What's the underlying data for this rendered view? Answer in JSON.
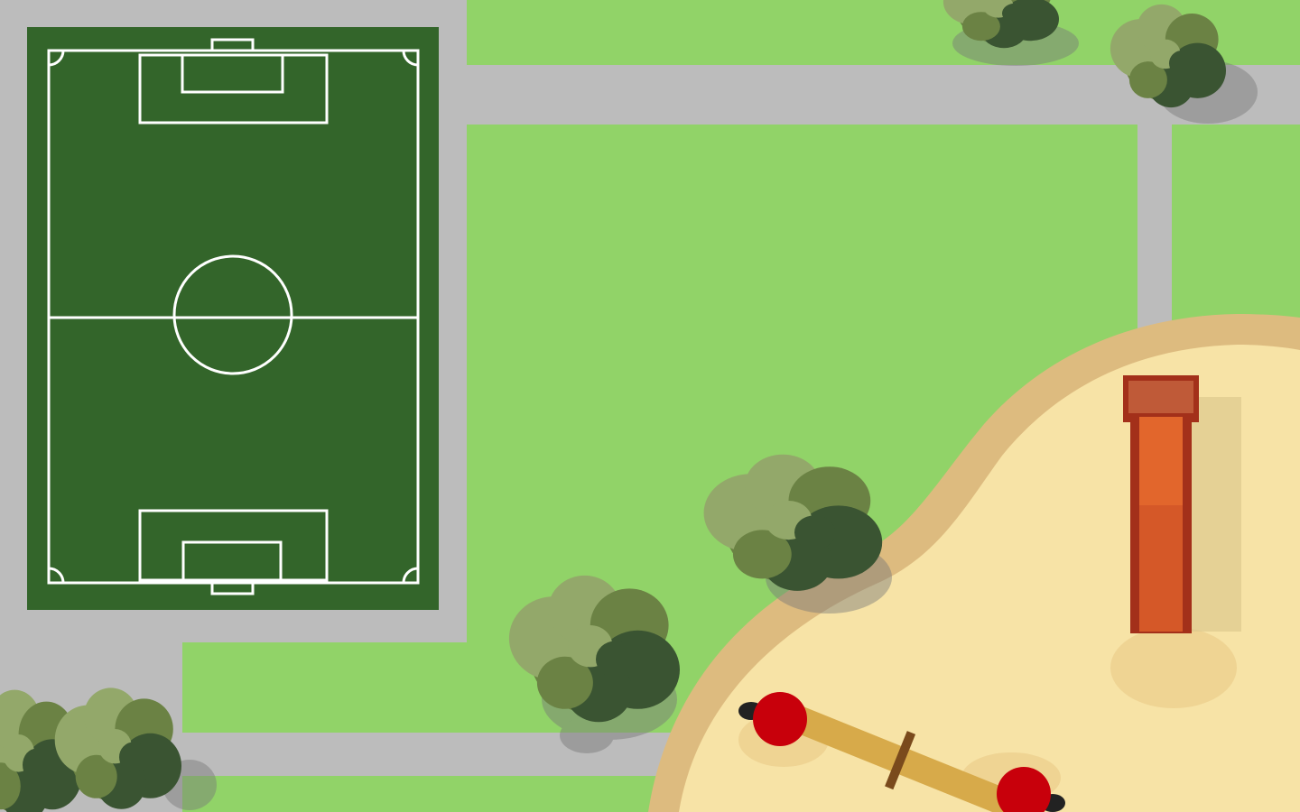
{
  "scene": {
    "name": "top-down-park-map",
    "colors": {
      "grass": "#91d368",
      "path": "#bcbcbc",
      "pitch": "#33652a",
      "pitch_lines": "#ffffff",
      "sand_border": "#ddbb7f",
      "sand": "#f7e3a6",
      "tree_light": "#93a86a",
      "tree_mid": "#6b8244",
      "tree_dark": "#3a5432",
      "slide": "#e2662c",
      "slide_dark": "#a3301a",
      "seesaw_board": "#d7aa4a",
      "seesaw_seat": "#c8000b"
    },
    "objects": [
      "soccer-pitch",
      "paths",
      "trees",
      "sandbox",
      "slide",
      "seesaw"
    ]
  }
}
